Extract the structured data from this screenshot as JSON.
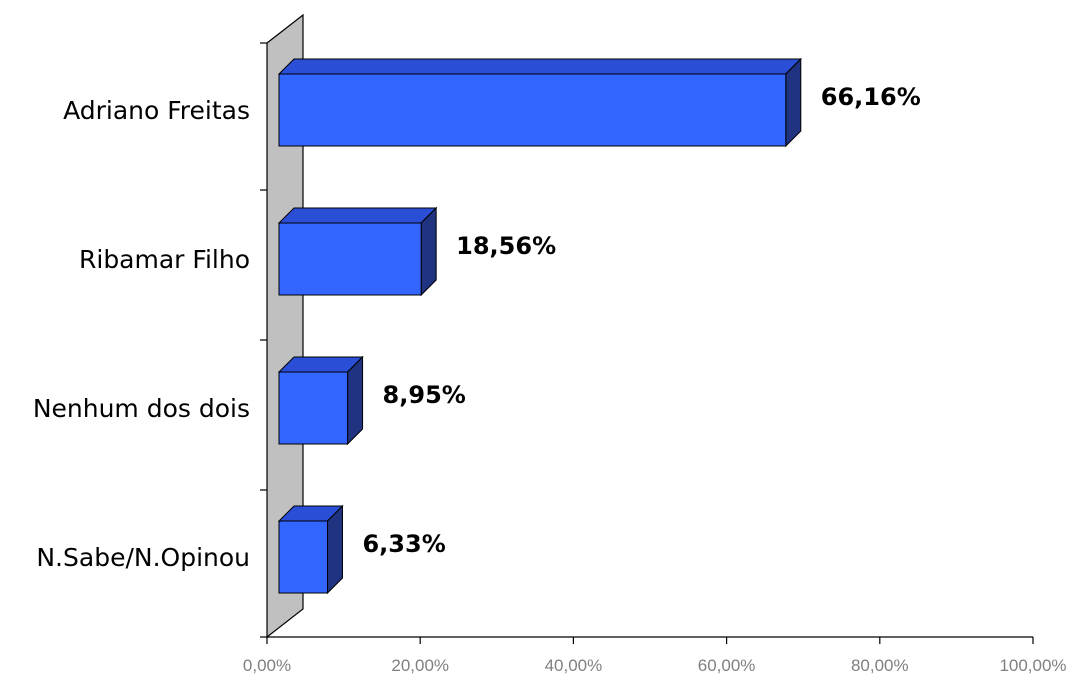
{
  "chart_data": {
    "type": "bar",
    "orientation": "horizontal",
    "three_d": true,
    "categories": [
      "Adriano Freitas",
      "Ribamar Filho",
      "Nenhum dos dois",
      "N.Sabe/N.Opinou"
    ],
    "values": [
      66.16,
      18.56,
      8.95,
      6.33
    ],
    "value_labels": [
      "66,16%",
      "18,56%",
      "8,95%",
      "6,33%"
    ],
    "xlim": [
      0,
      100
    ],
    "x_ticks": [
      "0,00%",
      "20,00%",
      "40,00%",
      "60,00%",
      "80,00%",
      "100,00%"
    ],
    "grid": false,
    "legend": "none",
    "colors": {
      "bar_front": "#3366ff",
      "bar_top": "#2a4fd6",
      "bar_side": "#1f3380",
      "wall": "#c0c0c0",
      "axis": "#000000",
      "tick_text": "#808080"
    }
  }
}
